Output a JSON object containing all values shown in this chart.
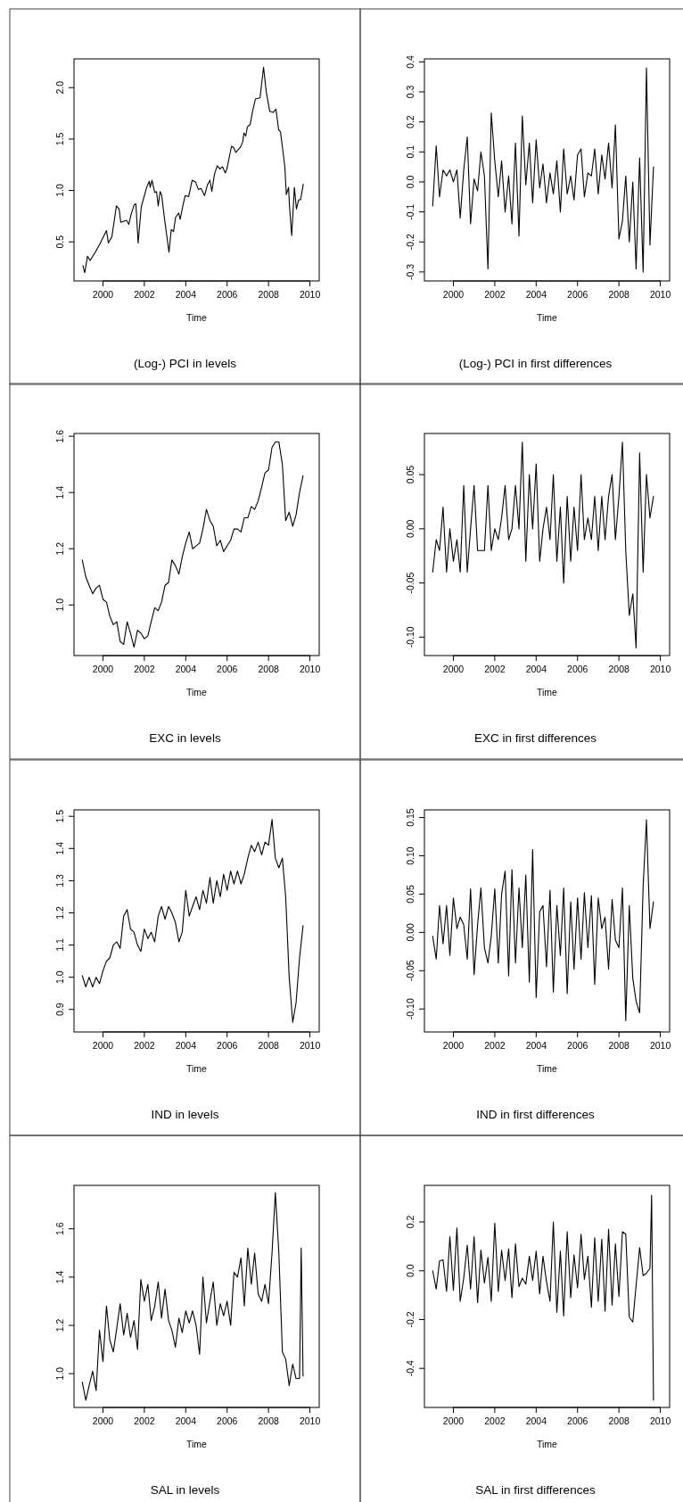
{
  "chart_data": [
    {
      "type": "line",
      "title": "(Log-) PCI in levels",
      "xlabel": "Time",
      "color": "#000000",
      "xlim": [
        1998.6,
        2010.45
      ],
      "xticks": [
        2000,
        2002,
        2004,
        2006,
        2008,
        2010
      ],
      "ylim": [
        0.12,
        2.28
      ],
      "yticks": [
        0.5,
        {
          "value": 1,
          "label": "1.0"
        },
        1.5,
        {
          "value": 2,
          "label": "2.0"
        }
      ],
      "x": [
        1999.03,
        1999.12,
        1999.25,
        1999.38,
        1999.63,
        1999.85,
        2000.17,
        2000.26,
        2000.43,
        2000.65,
        2000.78,
        2000.86,
        2001.14,
        2001.25,
        2001.36,
        2001.51,
        2001.59,
        2001.7,
        2001.85,
        2002.11,
        2002.24,
        2002.28,
        2002.37,
        2002.5,
        2002.59,
        2002.67,
        2002.76,
        2002.84,
        2002.97,
        2003.19,
        2003.3,
        2003.41,
        2003.51,
        2003.66,
        2003.73,
        2003.88,
        2003.97,
        2004.14,
        2004.31,
        2004.48,
        2004.61,
        2004.74,
        2004.91,
        2005.04,
        2005.17,
        2005.26,
        2005.39,
        2005.52,
        2005.65,
        2005.78,
        2005.91,
        2005.99,
        2006.21,
        2006.31,
        2006.42,
        2006.64,
        2006.75,
        2006.81,
        2006.9,
        2006.98,
        2007.11,
        2007.24,
        2007.37,
        2007.59,
        2007.76,
        2007.89,
        2008.06,
        2008.23,
        2008.36,
        2008.49,
        2008.58,
        2008.79,
        2008.86,
        2008.97,
        2009.01,
        2009.12,
        2009.25,
        2009.35,
        2009.46,
        2009.55,
        2009.68
      ],
      "values": [
        0.27,
        0.2,
        0.36,
        0.32,
        0.4,
        0.48,
        0.61,
        0.49,
        0.55,
        0.85,
        0.82,
        0.69,
        0.71,
        0.67,
        0.77,
        0.86,
        0.87,
        0.49,
        0.84,
        1.03,
        1.09,
        1.03,
        1.1,
        0.98,
        0.99,
        0.85,
        0.99,
        0.95,
        0.73,
        0.4,
        0.62,
        0.6,
        0.74,
        0.78,
        0.72,
        0.87,
        0.95,
        0.94,
        1.1,
        1.08,
        1.01,
        1.02,
        0.95,
        1.05,
        1.1,
        0.99,
        1.16,
        1.24,
        1.21,
        1.23,
        1.17,
        1.21,
        1.43,
        1.42,
        1.37,
        1.42,
        1.47,
        1.56,
        1.53,
        1.62,
        1.64,
        1.78,
        1.89,
        1.9,
        2.2,
        1.96,
        1.77,
        1.76,
        1.79,
        1.59,
        1.57,
        1.23,
        0.96,
        1.03,
        0.86,
        0.56,
        1.03,
        0.82,
        0.91,
        0.91,
        1.06
      ]
    },
    {
      "type": "line",
      "title": "(Log-) PCI in first differences",
      "xlabel": "Time",
      "color": "#000000",
      "xlim": [
        1998.6,
        2010.45
      ],
      "xticks": [
        2000,
        2002,
        2004,
        2006,
        2008,
        2010
      ],
      "ylim": [
        -0.33,
        0.41
      ],
      "yticks": [
        -0.3,
        -0.2,
        -0.1,
        {
          "value": 0,
          "label": "0.0"
        },
        0.1,
        0.2,
        0.3,
        0.4
      ],
      "x": [
        1999,
        1999.17,
        1999.33,
        1999.5,
        1999.67,
        1999.83,
        2000,
        2000.17,
        2000.33,
        2000.5,
        2000.67,
        2000.83,
        2001,
        2001.17,
        2001.33,
        2001.5,
        2001.67,
        2001.83,
        2002,
        2002.17,
        2002.33,
        2002.5,
        2002.67,
        2002.83,
        2003,
        2003.17,
        2003.33,
        2003.5,
        2003.67,
        2003.83,
        2004,
        2004.17,
        2004.33,
        2004.5,
        2004.67,
        2004.83,
        2005,
        2005.17,
        2005.33,
        2005.5,
        2005.67,
        2005.83,
        2006,
        2006.17,
        2006.33,
        2006.5,
        2006.67,
        2006.83,
        2007,
        2007.17,
        2007.33,
        2007.5,
        2007.67,
        2007.83,
        2008,
        2008.17,
        2008.33,
        2008.5,
        2008.67,
        2008.83,
        2009,
        2009.17,
        2009.33,
        2009.5,
        2009.67
      ],
      "values": [
        -0.08,
        0.12,
        -0.05,
        0.04,
        0.02,
        0.04,
        0.0,
        0.04,
        -0.12,
        0.04,
        0.15,
        -0.14,
        0.01,
        -0.03,
        0.1,
        0.02,
        -0.29,
        0.23,
        0.07,
        -0.05,
        0.07,
        -0.1,
        0.02,
        -0.14,
        0.13,
        -0.18,
        0.22,
        -0.01,
        0.13,
        -0.07,
        0.14,
        -0.02,
        0.06,
        -0.07,
        0.03,
        -0.04,
        0.07,
        -0.1,
        0.11,
        -0.04,
        0.02,
        -0.06,
        0.09,
        0.11,
        -0.05,
        0.03,
        0.02,
        0.11,
        -0.04,
        0.09,
        0.01,
        0.13,
        -0.02,
        0.19,
        -0.19,
        -0.13,
        0.02,
        -0.2,
        0.0,
        -0.29,
        0.08,
        -0.3,
        0.38,
        -0.21,
        0.05
      ]
    },
    {
      "type": "line",
      "title": "EXC in levels",
      "xlabel": "Time",
      "color": "#000000",
      "xlim": [
        1998.6,
        2010.45
      ],
      "xticks": [
        2000,
        2002,
        2004,
        2006,
        2008,
        2010
      ],
      "ylim": [
        0.82,
        1.61
      ],
      "yticks": [
        {
          "value": 1,
          "label": "1.0"
        },
        1.2,
        1.4,
        1.6
      ],
      "x": [
        1999,
        1999.17,
        1999.33,
        1999.5,
        1999.67,
        1999.83,
        2000,
        2000.17,
        2000.33,
        2000.5,
        2000.67,
        2000.83,
        2001,
        2001.17,
        2001.33,
        2001.5,
        2001.67,
        2001.83,
        2002,
        2002.17,
        2002.33,
        2002.5,
        2002.67,
        2002.83,
        2003,
        2003.17,
        2003.33,
        2003.5,
        2003.67,
        2003.83,
        2004,
        2004.17,
        2004.33,
        2004.5,
        2004.67,
        2004.83,
        2005,
        2005.17,
        2005.33,
        2005.5,
        2005.67,
        2005.83,
        2006,
        2006.17,
        2006.33,
        2006.5,
        2006.67,
        2006.83,
        2007,
        2007.17,
        2007.33,
        2007.5,
        2007.67,
        2007.83,
        2008,
        2008.17,
        2008.33,
        2008.5,
        2008.67,
        2008.83,
        2009,
        2009.17,
        2009.33,
        2009.5,
        2009.67
      ],
      "values": [
        1.16,
        1.1,
        1.07,
        1.04,
        1.06,
        1.07,
        1.02,
        1.01,
        0.96,
        0.93,
        0.94,
        0.87,
        0.86,
        0.94,
        0.9,
        0.85,
        0.91,
        0.9,
        0.88,
        0.89,
        0.94,
        0.99,
        0.98,
        1.01,
        1.07,
        1.08,
        1.16,
        1.14,
        1.11,
        1.17,
        1.22,
        1.26,
        1.2,
        1.21,
        1.22,
        1.27,
        1.34,
        1.3,
        1.28,
        1.21,
        1.23,
        1.19,
        1.21,
        1.23,
        1.27,
        1.27,
        1.26,
        1.31,
        1.31,
        1.35,
        1.34,
        1.37,
        1.42,
        1.47,
        1.48,
        1.56,
        1.58,
        1.58,
        1.5,
        1.3,
        1.33,
        1.28,
        1.32,
        1.4,
        1.46
      ]
    },
    {
      "type": "line",
      "title": "EXC in first differences",
      "xlabel": "Time",
      "color": "#000000",
      "xlim": [
        1998.6,
        2010.45
      ],
      "xticks": [
        2000,
        2002,
        2004,
        2006,
        2008,
        2010
      ],
      "ylim": [
        -0.117,
        0.088
      ],
      "yticks": [
        {
          "value": -0.1,
          "label": "-0.10"
        },
        -0.05,
        {
          "value": 0,
          "label": "0.00"
        },
        0.05
      ],
      "x": [
        1999,
        1999.17,
        1999.33,
        1999.5,
        1999.67,
        1999.83,
        2000,
        2000.17,
        2000.33,
        2000.5,
        2000.67,
        2000.83,
        2001,
        2001.17,
        2001.33,
        2001.5,
        2001.67,
        2001.83,
        2002,
        2002.17,
        2002.33,
        2002.5,
        2002.67,
        2002.83,
        2003,
        2003.17,
        2003.33,
        2003.5,
        2003.67,
        2003.83,
        2004,
        2004.17,
        2004.33,
        2004.5,
        2004.67,
        2004.83,
        2005,
        2005.17,
        2005.33,
        2005.5,
        2005.67,
        2005.83,
        2006,
        2006.17,
        2006.33,
        2006.5,
        2006.67,
        2006.83,
        2007,
        2007.17,
        2007.33,
        2007.5,
        2007.67,
        2007.83,
        2008,
        2008.17,
        2008.33,
        2008.5,
        2008.67,
        2008.83,
        2009,
        2009.17,
        2009.33,
        2009.5,
        2009.67
      ],
      "values": [
        -0.04,
        -0.01,
        -0.02,
        0.02,
        -0.04,
        0.0,
        -0.03,
        -0.01,
        -0.04,
        0.04,
        -0.04,
        0.0,
        0.04,
        -0.02,
        -0.02,
        -0.02,
        0.04,
        -0.02,
        0.0,
        -0.01,
        0.01,
        0.04,
        -0.01,
        0.0,
        0.04,
        0.0,
        0.08,
        -0.03,
        0.05,
        0.0,
        0.06,
        -0.03,
        0.0,
        0.02,
        -0.01,
        0.05,
        -0.03,
        0.02,
        -0.05,
        0.03,
        -0.03,
        0.02,
        -0.02,
        0.05,
        -0.01,
        0.01,
        -0.01,
        0.03,
        -0.02,
        0.03,
        -0.01,
        0.03,
        0.05,
        -0.01,
        0.03,
        0.08,
        -0.02,
        -0.08,
        -0.06,
        -0.11,
        0.07,
        -0.04,
        0.05,
        0.01,
        0.03
      ]
    },
    {
      "type": "line",
      "title": "IND in levels",
      "xlabel": "Time",
      "color": "#000000",
      "xlim": [
        1998.6,
        2010.45
      ],
      "xticks": [
        2000,
        2002,
        2004,
        2006,
        2008,
        2010
      ],
      "ylim": [
        0.83,
        1.52
      ],
      "yticks": [
        0.9,
        {
          "value": 1,
          "label": "1.0"
        },
        1.1,
        1.2,
        1.3,
        1.4,
        1.5
      ],
      "x": [
        1999,
        1999.17,
        1999.33,
        1999.5,
        1999.67,
        1999.83,
        2000,
        2000.17,
        2000.33,
        2000.5,
        2000.67,
        2000.83,
        2001,
        2001.17,
        2001.33,
        2001.5,
        2001.67,
        2001.83,
        2002,
        2002.17,
        2002.33,
        2002.5,
        2002.67,
        2002.83,
        2003,
        2003.17,
        2003.33,
        2003.5,
        2003.67,
        2003.83,
        2004,
        2004.17,
        2004.33,
        2004.5,
        2004.67,
        2004.83,
        2005,
        2005.17,
        2005.33,
        2005.5,
        2005.67,
        2005.83,
        2006,
        2006.17,
        2006.33,
        2006.5,
        2006.67,
        2006.83,
        2007,
        2007.17,
        2007.33,
        2007.5,
        2007.67,
        2007.83,
        2008,
        2008.17,
        2008.33,
        2008.5,
        2008.67,
        2008.83,
        2009,
        2009.17,
        2009.33,
        2009.5,
        2009.67
      ],
      "values": [
        1.005,
        0.97,
        1.0,
        0.97,
        1.0,
        0.98,
        1.02,
        1.05,
        1.06,
        1.1,
        1.11,
        1.09,
        1.19,
        1.21,
        1.15,
        1.14,
        1.1,
        1.08,
        1.15,
        1.12,
        1.14,
        1.11,
        1.19,
        1.22,
        1.18,
        1.22,
        1.2,
        1.17,
        1.11,
        1.14,
        1.27,
        1.19,
        1.22,
        1.25,
        1.21,
        1.27,
        1.23,
        1.31,
        1.23,
        1.3,
        1.25,
        1.32,
        1.27,
        1.33,
        1.29,
        1.33,
        1.29,
        1.32,
        1.37,
        1.41,
        1.39,
        1.42,
        1.38,
        1.42,
        1.41,
        1.49,
        1.37,
        1.34,
        1.37,
        1.25,
        1.0,
        0.86,
        0.92,
        1.06,
        1.16
      ]
    },
    {
      "type": "line",
      "title": "IND in first differences",
      "xlabel": "Time",
      "color": "#000000",
      "xlim": [
        1998.6,
        2010.45
      ],
      "xticks": [
        2000,
        2002,
        2004,
        2006,
        2008,
        2010
      ],
      "ylim": [
        -0.13,
        0.16
      ],
      "yticks": [
        {
          "value": -0.1,
          "label": "-0.10"
        },
        -0.05,
        {
          "value": 0,
          "label": "0.00"
        },
        0.05,
        {
          "value": 0.1,
          "label": "0.10"
        },
        0.15
      ],
      "x": [
        1999,
        1999.17,
        1999.33,
        1999.5,
        1999.67,
        1999.83,
        2000,
        2000.17,
        2000.33,
        2000.5,
        2000.67,
        2000.83,
        2001,
        2001.17,
        2001.33,
        2001.5,
        2001.67,
        2001.83,
        2002,
        2002.17,
        2002.33,
        2002.5,
        2002.67,
        2002.83,
        2003,
        2003.17,
        2003.33,
        2003.5,
        2003.67,
        2003.83,
        2004,
        2004.17,
        2004.33,
        2004.5,
        2004.67,
        2004.83,
        2005,
        2005.17,
        2005.33,
        2005.5,
        2005.67,
        2005.83,
        2006,
        2006.17,
        2006.33,
        2006.5,
        2006.67,
        2006.83,
        2007,
        2007.17,
        2007.33,
        2007.5,
        2007.67,
        2007.83,
        2008,
        2008.17,
        2008.33,
        2008.5,
        2008.67,
        2008.83,
        2009,
        2009.17,
        2009.33,
        2009.5,
        2009.67
      ],
      "values": [
        -0.005,
        -0.035,
        0.035,
        -0.015,
        0.035,
        -0.03,
        0.045,
        0.005,
        0.02,
        0.01,
        -0.035,
        0.057,
        -0.055,
        0.01,
        0.058,
        -0.02,
        -0.04,
        -0.005,
        0.057,
        -0.04,
        0.05,
        0.08,
        -0.057,
        0.082,
        -0.04,
        0.058,
        -0.02,
        0.075,
        -0.065,
        0.108,
        -0.085,
        0.027,
        0.035,
        -0.045,
        0.055,
        -0.078,
        0.035,
        -0.03,
        0.058,
        -0.08,
        0.04,
        -0.048,
        0.045,
        -0.035,
        0.052,
        -0.02,
        0.048,
        -0.068,
        0.045,
        0.005,
        0.02,
        -0.048,
        0.043,
        -0.01,
        -0.02,
        0.058,
        -0.115,
        0.035,
        -0.06,
        -0.09,
        -0.105,
        0.06,
        0.147,
        0.005,
        0.04
      ]
    },
    {
      "type": "line",
      "title": "SAL in levels",
      "xlabel": "Time",
      "color": "#000000",
      "xlim": [
        1998.6,
        2010.45
      ],
      "xticks": [
        2000,
        2002,
        2004,
        2006,
        2008,
        2010
      ],
      "ylim": [
        0.86,
        1.78
      ],
      "yticks": [
        {
          "value": 1,
          "label": "1.0"
        },
        1.2,
        1.4,
        1.6
      ],
      "x": [
        1999,
        1999.17,
        1999.33,
        1999.5,
        1999.67,
        1999.83,
        2000,
        2000.17,
        2000.33,
        2000.5,
        2000.67,
        2000.83,
        2001,
        2001.17,
        2001.33,
        2001.5,
        2001.67,
        2001.83,
        2002,
        2002.17,
        2002.33,
        2002.5,
        2002.67,
        2002.83,
        2003,
        2003.17,
        2003.33,
        2003.5,
        2003.67,
        2003.83,
        2004,
        2004.17,
        2004.33,
        2004.5,
        2004.67,
        2004.83,
        2005,
        2005.17,
        2005.33,
        2005.5,
        2005.67,
        2005.83,
        2006,
        2006.17,
        2006.33,
        2006.5,
        2006.67,
        2006.83,
        2007,
        2007.17,
        2007.33,
        2007.5,
        2007.67,
        2007.83,
        2008,
        2008.17,
        2008.33,
        2008.5,
        2008.67,
        2008.83,
        2009,
        2009.17,
        2009.33,
        2009.5,
        2009.58,
        2009.67
      ],
      "values": [
        0.965,
        0.89,
        0.95,
        1.01,
        0.93,
        1.18,
        1.05,
        1.28,
        1.14,
        1.09,
        1.19,
        1.29,
        1.16,
        1.25,
        1.15,
        1.22,
        1.1,
        1.39,
        1.3,
        1.37,
        1.22,
        1.28,
        1.38,
        1.23,
        1.35,
        1.22,
        1.18,
        1.11,
        1.23,
        1.17,
        1.26,
        1.21,
        1.26,
        1.2,
        1.08,
        1.4,
        1.21,
        1.3,
        1.38,
        1.2,
        1.29,
        1.24,
        1.3,
        1.2,
        1.42,
        1.4,
        1.48,
        1.28,
        1.52,
        1.37,
        1.5,
        1.33,
        1.3,
        1.37,
        1.29,
        1.5,
        1.75,
        1.5,
        1.09,
        1.06,
        0.95,
        1.04,
        0.98,
        0.98,
        1.52,
        0.99
      ]
    },
    {
      "type": "line",
      "title": "SAL in first differences",
      "xlabel": "Time",
      "color": "#000000",
      "xlim": [
        1998.6,
        2010.45
      ],
      "xticks": [
        2000,
        2002,
        2004,
        2006,
        2008,
        2010
      ],
      "ylim": [
        -0.56,
        0.35
      ],
      "yticks": [
        -0.4,
        -0.2,
        {
          "value": 0,
          "label": "0.0"
        },
        0.2
      ],
      "x": [
        1999,
        1999.17,
        1999.33,
        1999.5,
        1999.67,
        1999.83,
        2000,
        2000.17,
        2000.33,
        2000.5,
        2000.67,
        2000.83,
        2001,
        2001.17,
        2001.33,
        2001.5,
        2001.67,
        2001.83,
        2002,
        2002.17,
        2002.33,
        2002.5,
        2002.67,
        2002.83,
        2003,
        2003.17,
        2003.33,
        2003.5,
        2003.67,
        2003.83,
        2004,
        2004.17,
        2004.33,
        2004.5,
        2004.67,
        2004.83,
        2005,
        2005.17,
        2005.33,
        2005.5,
        2005.67,
        2005.83,
        2006,
        2006.17,
        2006.33,
        2006.5,
        2006.67,
        2006.83,
        2007,
        2007.17,
        2007.33,
        2007.5,
        2007.67,
        2007.83,
        2008,
        2008.17,
        2008.33,
        2008.5,
        2008.67,
        2008.83,
        2009,
        2009.17,
        2009.33,
        2009.5,
        2009.58,
        2009.67
      ],
      "values": [
        0.0,
        -0.075,
        0.04,
        0.045,
        -0.085,
        0.14,
        -0.08,
        0.175,
        -0.125,
        -0.03,
        0.105,
        -0.075,
        0.14,
        -0.13,
        0.085,
        -0.05,
        0.055,
        -0.125,
        0.195,
        -0.085,
        0.085,
        -0.04,
        0.09,
        -0.11,
        0.11,
        -0.065,
        -0.03,
        -0.055,
        0.06,
        -0.04,
        0.08,
        -0.095,
        0.06,
        -0.045,
        -0.125,
        0.2,
        -0.17,
        0.08,
        -0.185,
        0.16,
        -0.11,
        0.065,
        -0.07,
        0.15,
        -0.035,
        0.06,
        -0.15,
        0.135,
        -0.125,
        0.13,
        -0.165,
        0.17,
        -0.14,
        0.11,
        -0.105,
        0.16,
        0.15,
        -0.19,
        -0.21,
        -0.06,
        0.095,
        -0.02,
        -0.01,
        0.01,
        0.31,
        -0.53
      ]
    }
  ]
}
